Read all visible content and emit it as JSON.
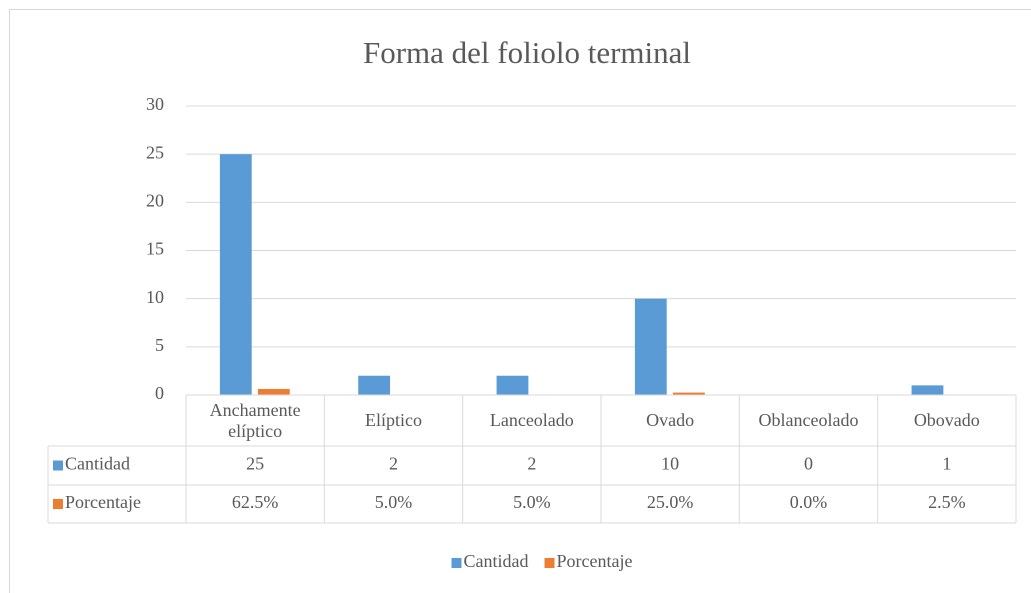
{
  "chart_data": {
    "type": "bar",
    "title": "Forma del foliolo terminal",
    "categories": [
      "Anchamente elíptico",
      "Elíptico",
      "Lanceolado",
      "Ovado",
      "Oblanceolado",
      "Obovado"
    ],
    "series": [
      {
        "name": "Cantidad",
        "color": "#5b9bd5",
        "values": [
          25,
          2,
          2,
          10,
          0,
          1
        ]
      },
      {
        "name": "Porcentaje",
        "color": "#ed7d31",
        "values": [
          0.625,
          0.05,
          0.05,
          0.25,
          0,
          0.025
        ],
        "value_labels": [
          "62.5%",
          "5.0%",
          "5.0%",
          "25.0%",
          "0.0%",
          "2.5%"
        ]
      }
    ],
    "ylim": [
      0,
      30
    ],
    "yticks": [
      0,
      5,
      10,
      15,
      20,
      25,
      30
    ],
    "grid": true,
    "legend": "bottom"
  }
}
